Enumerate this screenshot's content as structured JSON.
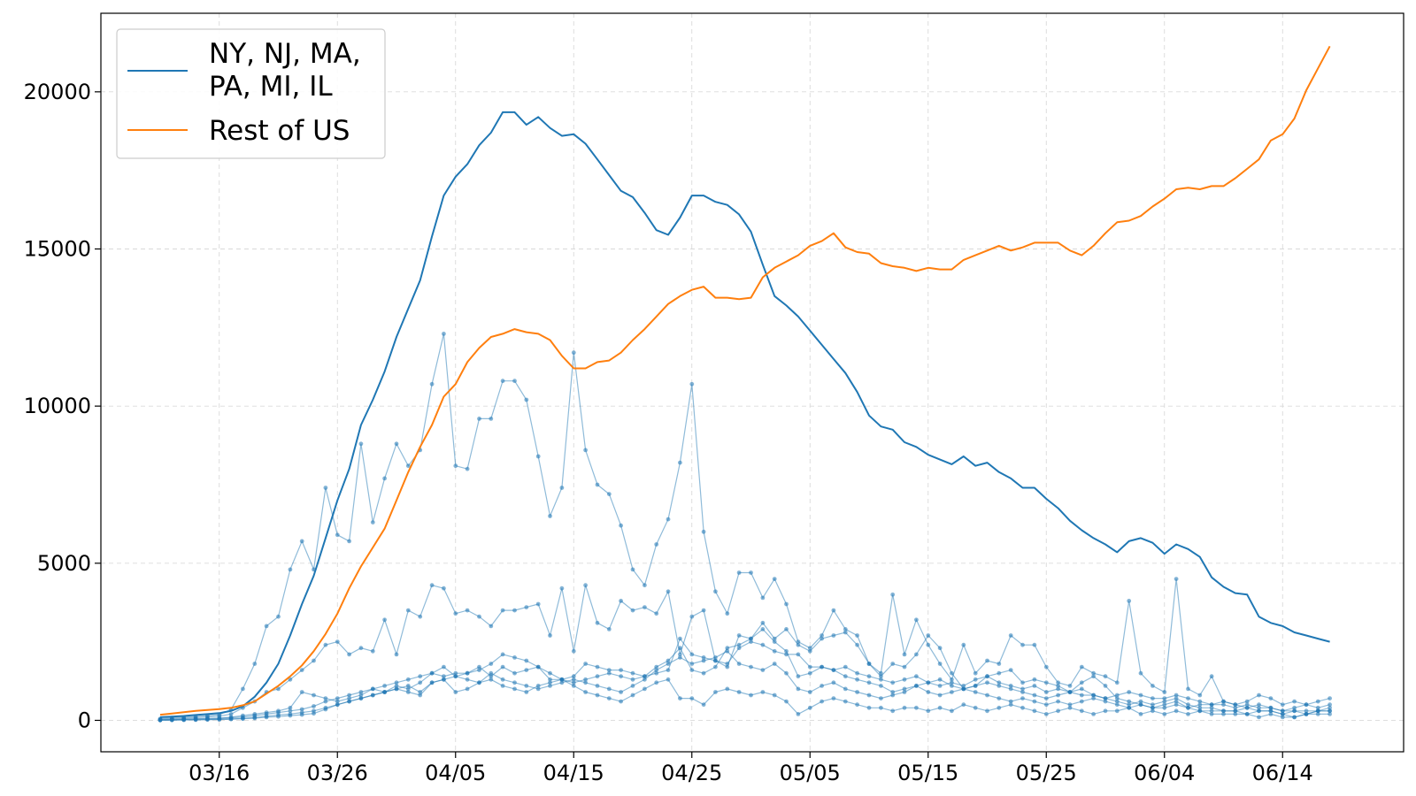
{
  "chart_data": {
    "type": "line",
    "x_dates": [
      "03/11",
      "03/12",
      "03/13",
      "03/14",
      "03/15",
      "03/16",
      "03/17",
      "03/18",
      "03/19",
      "03/20",
      "03/21",
      "03/22",
      "03/23",
      "03/24",
      "03/25",
      "03/26",
      "03/27",
      "03/28",
      "03/29",
      "03/30",
      "03/31",
      "04/01",
      "04/02",
      "04/03",
      "04/04",
      "04/05",
      "04/06",
      "04/07",
      "04/08",
      "04/09",
      "04/10",
      "04/11",
      "04/12",
      "04/13",
      "04/14",
      "04/15",
      "04/16",
      "04/17",
      "04/18",
      "04/19",
      "04/20",
      "04/21",
      "04/22",
      "04/23",
      "04/24",
      "04/25",
      "04/26",
      "04/27",
      "04/28",
      "04/29",
      "04/30",
      "05/01",
      "05/02",
      "05/03",
      "05/04",
      "05/05",
      "05/06",
      "05/07",
      "05/08",
      "05/09",
      "05/10",
      "05/11",
      "05/12",
      "05/13",
      "05/14",
      "05/15",
      "05/16",
      "05/17",
      "05/18",
      "05/19",
      "05/20",
      "05/21",
      "05/22",
      "05/23",
      "05/24",
      "05/25",
      "05/26",
      "05/27",
      "05/28",
      "05/29",
      "05/30",
      "05/31",
      "06/01",
      "06/02",
      "06/03",
      "06/04",
      "06/05",
      "06/06",
      "06/07",
      "06/08",
      "06/09",
      "06/10",
      "06/11",
      "06/12",
      "06/13",
      "06/14",
      "06/15",
      "06/16",
      "06/17",
      "06/18"
    ],
    "x_ticks": [
      "03/16",
      "03/26",
      "04/05",
      "04/15",
      "04/25",
      "05/05",
      "05/15",
      "05/25",
      "06/04",
      "06/14"
    ],
    "y_ticks": [
      0,
      5000,
      10000,
      15000,
      20000
    ],
    "ylim": [
      -1000,
      22500
    ],
    "grid": true,
    "legend_position": "top-left",
    "series": [
      {
        "name": "NY, NJ, MA, PA, MI, IL",
        "color": "#1f77b4",
        "values": [
          100,
          120,
          140,
          170,
          200,
          230,
          300,
          450,
          750,
          1200,
          1800,
          2700,
          3700,
          4600,
          5800,
          7000,
          8000,
          9400,
          10200,
          11100,
          12200,
          13100,
          14000,
          15400,
          16700,
          17300,
          17700,
          18300,
          18700,
          19350,
          19350,
          18950,
          19200,
          18850,
          18600,
          18650,
          18350,
          17850,
          17350,
          16850,
          16650,
          16150,
          15600,
          15450,
          16000,
          16700,
          16700,
          16500,
          16400,
          16100,
          15550,
          14500,
          13500,
          13200,
          12850,
          12400,
          11950,
          11500,
          11050,
          10450,
          9700,
          9350,
          9250,
          8850,
          8700,
          8450,
          8300,
          8150,
          8400,
          8100,
          8200,
          7900,
          7700,
          7400,
          7400,
          7050,
          6750,
          6350,
          6050,
          5800,
          5600,
          5350,
          5700,
          5800,
          5650,
          5300,
          5600,
          5450,
          5200,
          4550,
          4250,
          4050,
          4000,
          3300,
          3100,
          3000,
          2800,
          2700,
          2600,
          2500
        ]
      },
      {
        "name": "Rest of US",
        "color": "#ff7f0e",
        "values": [
          180,
          220,
          260,
          300,
          330,
          360,
          400,
          480,
          600,
          850,
          1100,
          1400,
          1750,
          2200,
          2750,
          3400,
          4200,
          4900,
          5500,
          6100,
          7000,
          7900,
          8700,
          9400,
          10300,
          10700,
          11400,
          11850,
          12200,
          12300,
          12450,
          12350,
          12300,
          12100,
          11600,
          11200,
          11200,
          11400,
          11450,
          11700,
          12100,
          12450,
          12850,
          13250,
          13500,
          13700,
          13800,
          13450,
          13450,
          13400,
          13450,
          14100,
          14400,
          14600,
          14800,
          15100,
          15250,
          15500,
          15050,
          14900,
          14850,
          14550,
          14450,
          14400,
          14300,
          14400,
          14350,
          14350,
          14650,
          14800,
          14950,
          15100,
          14950,
          15050,
          15200,
          15200,
          15200,
          14950,
          14800,
          15100,
          15500,
          15850,
          15900,
          16050,
          16350,
          16600,
          16900,
          16950,
          16900,
          17000,
          17000,
          17250,
          17550,
          17850,
          18450,
          18650,
          19150,
          20050,
          20750,
          21450
        ]
      }
    ],
    "state_series": [
      {
        "values": [
          50,
          80,
          100,
          120,
          150,
          180,
          350,
          1000,
          1800,
          3000,
          3300,
          4800,
          5700,
          4800,
          7400,
          5900,
          5700,
          8800,
          6300,
          7700,
          8800,
          8100,
          8600,
          10700,
          12300,
          8100,
          8000,
          9600,
          9600,
          10800,
          10800,
          10200,
          8400,
          6500,
          7400,
          11700,
          8600,
          7500,
          7200,
          6200,
          4800,
          4300,
          5600,
          6400,
          8200,
          10700,
          6000,
          4100,
          3400,
          4700,
          4700,
          3900,
          4500,
          3700,
          2500,
          2300,
          2700,
          3500,
          2900,
          2700,
          1800,
          1500,
          4000,
          2100,
          3200,
          2400,
          1800,
          1300,
          2400,
          1500,
          1900,
          1800,
          2700,
          2400,
          2400,
          1700,
          1200,
          1100,
          1700,
          1500,
          1400,
          1200,
          3800,
          1500,
          1100,
          900,
          4500,
          1000,
          800,
          1400,
          600,
          500,
          600,
          800,
          700,
          500,
          600,
          500,
          600,
          700
        ]
      },
      {
        "values": [
          30,
          50,
          70,
          90,
          110,
          130,
          200,
          400,
          600,
          900,
          1000,
          1300,
          1600,
          1900,
          2400,
          2500,
          2100,
          2300,
          2200,
          3200,
          2100,
          3500,
          3300,
          4300,
          4200,
          3400,
          3500,
          3300,
          3000,
          3500,
          3500,
          3600,
          3700,
          2700,
          4200,
          2200,
          4300,
          3100,
          2900,
          3800,
          3500,
          3600,
          3400,
          4100,
          2100,
          3300,
          3500,
          1900,
          1700,
          2700,
          2600,
          3100,
          2600,
          2900,
          2400,
          2200,
          2600,
          2700,
          2800,
          2400,
          1800,
          1400,
          1800,
          1700,
          2100,
          2700,
          2300,
          1500,
          1000,
          1100,
          1400,
          1500,
          1600,
          1200,
          1300,
          1200,
          1100,
          900,
          1200,
          1400,
          1100,
          700,
          600,
          500,
          400,
          500,
          600,
          400,
          500,
          500,
          600,
          500,
          400,
          500,
          400,
          300,
          400,
          500,
          400,
          500
        ]
      },
      {
        "values": [
          20,
          30,
          40,
          50,
          60,
          70,
          100,
          150,
          200,
          250,
          300,
          400,
          900,
          800,
          700,
          600,
          700,
          800,
          1000,
          900,
          1100,
          1000,
          1200,
          1500,
          1700,
          1400,
          1500,
          1700,
          1400,
          1700,
          1500,
          1600,
          1700,
          1300,
          1300,
          1400,
          1800,
          1700,
          1600,
          1600,
          1500,
          1400,
          1500,
          1600,
          2600,
          2100,
          2000,
          1900,
          1800,
          2300,
          2500,
          2400,
          2200,
          2100,
          2100,
          1700,
          1700,
          1600,
          1700,
          1500,
          1400,
          1300,
          1200,
          1300,
          1400,
          1200,
          1100,
          1200,
          1100,
          1300,
          1400,
          1200,
          1100,
          1000,
          1100,
          900,
          1000,
          900,
          800,
          800,
          700,
          800,
          900,
          800,
          700,
          700,
          800,
          700,
          600,
          500,
          500,
          400,
          500,
          400,
          400,
          300,
          300,
          200,
          300,
          400
        ]
      },
      {
        "values": [
          10,
          20,
          30,
          40,
          50,
          60,
          80,
          100,
          150,
          200,
          250,
          300,
          350,
          450,
          600,
          700,
          800,
          900,
          1000,
          1100,
          1200,
          1300,
          1400,
          1500,
          1400,
          1500,
          1500,
          1600,
          1800,
          2100,
          2000,
          1900,
          1700,
          1500,
          1300,
          1200,
          1300,
          1400,
          1500,
          1400,
          1300,
          1400,
          1700,
          1900,
          2300,
          1600,
          1500,
          1700,
          2300,
          2400,
          2600,
          2900,
          2500,
          2200,
          1400,
          1500,
          1700,
          1600,
          1400,
          1300,
          1200,
          1100,
          900,
          1000,
          1100,
          1200,
          1300,
          1100,
          1000,
          1100,
          1200,
          1100,
          1000,
          900,
          800,
          700,
          800,
          900,
          1000,
          800,
          700,
          600,
          500,
          600,
          500,
          600,
          700,
          500,
          400,
          400,
          300,
          300,
          400,
          300,
          300,
          200,
          300,
          300,
          300,
          300
        ]
      },
      {
        "values": [
          5,
          10,
          15,
          20,
          25,
          30,
          40,
          60,
          90,
          130,
          170,
          200,
          250,
          300,
          400,
          500,
          600,
          700,
          800,
          900,
          1000,
          1100,
          900,
          1200,
          1300,
          1400,
          1300,
          1200,
          1500,
          1300,
          1200,
          1100,
          1000,
          1100,
          1200,
          1300,
          1200,
          1100,
          1000,
          900,
          1100,
          1300,
          1600,
          1800,
          2000,
          1800,
          1900,
          2000,
          2200,
          1800,
          1700,
          1600,
          1800,
          1500,
          1000,
          900,
          1100,
          1200,
          1000,
          900,
          800,
          700,
          800,
          900,
          1100,
          900,
          800,
          900,
          1000,
          900,
          800,
          700,
          600,
          700,
          600,
          500,
          600,
          500,
          600,
          700,
          600,
          500,
          400,
          500,
          400,
          400,
          500,
          400,
          300,
          300,
          300,
          300,
          200,
          300,
          300,
          200,
          100,
          200,
          300,
          300
        ]
      },
      {
        "values": [
          5,
          8,
          12,
          18,
          24,
          30,
          40,
          50,
          70,
          100,
          120,
          150,
          180,
          220,
          350,
          500,
          600,
          700,
          800,
          900,
          1000,
          900,
          800,
          1200,
          1300,
          900,
          1000,
          1200,
          1300,
          1100,
          1000,
          900,
          1100,
          1200,
          1300,
          1100,
          900,
          800,
          700,
          600,
          800,
          1000,
          1200,
          1300,
          700,
          700,
          500,
          900,
          1000,
          900,
          800,
          900,
          800,
          600,
          200,
          400,
          600,
          700,
          600,
          500,
          400,
          400,
          300,
          400,
          400,
          300,
          400,
          300,
          500,
          400,
          300,
          400,
          500,
          400,
          300,
          200,
          300,
          400,
          300,
          200,
          300,
          300,
          400,
          200,
          300,
          200,
          300,
          200,
          300,
          200,
          200,
          200,
          200,
          100,
          200,
          100,
          100,
          200,
          200,
          200
        ]
      }
    ]
  }
}
